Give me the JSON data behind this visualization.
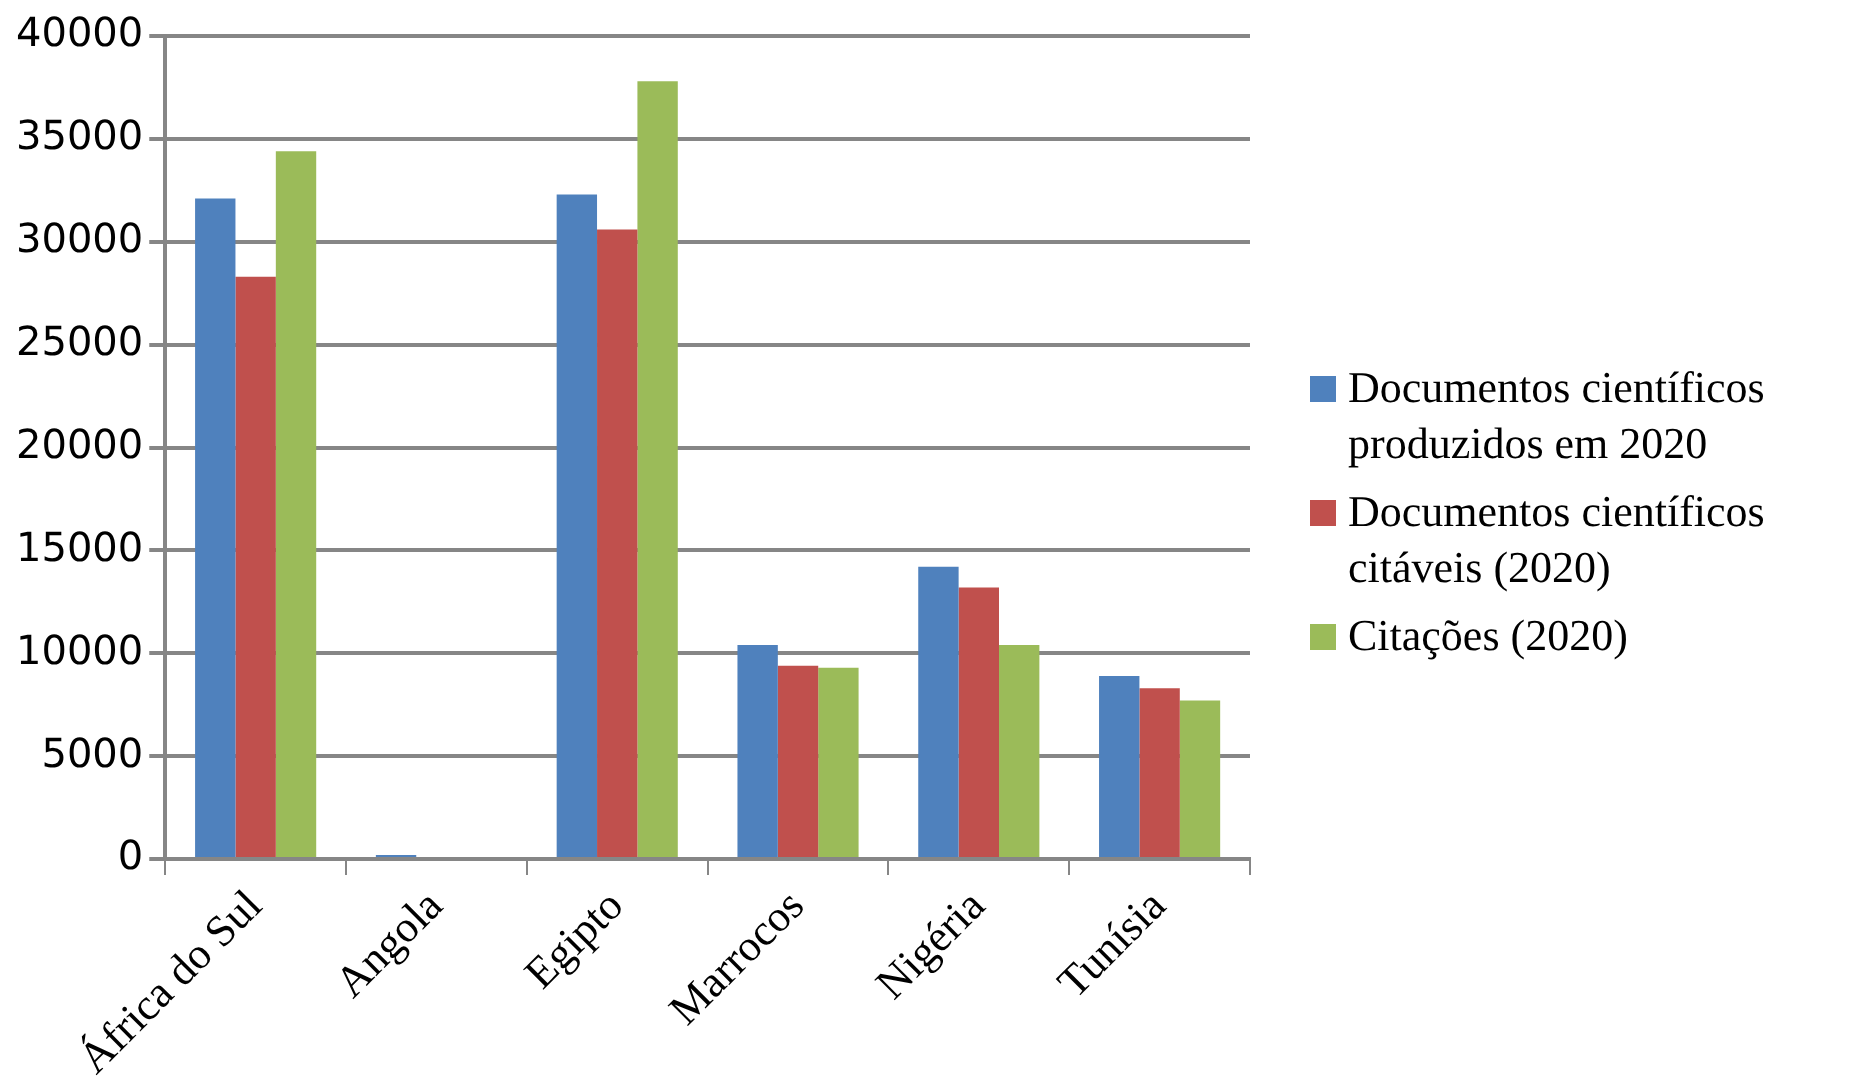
{
  "chart_data": {
    "type": "bar",
    "categories": [
      "África do Sul",
      "Angola",
      "Egipto",
      "Marrocos",
      "Nigéria",
      "Tunísia"
    ],
    "series": [
      {
        "name": "Documentos científicos produzidos em 2020",
        "color": "#4f81bd",
        "values": [
          32100,
          200,
          32300,
          10400,
          14200,
          8900
        ]
      },
      {
        "name": "Documentos científicos citáveis (2020)",
        "color": "#c0504d",
        "values": [
          28300,
          null,
          30600,
          9400,
          13200,
          8300
        ]
      },
      {
        "name": "Citações (2020)",
        "color": "#9bbb59",
        "values": [
          34400,
          null,
          37800,
          9300,
          10400,
          7700
        ]
      }
    ],
    "ylim": [
      0,
      40000
    ],
    "yticks": [
      0,
      5000,
      10000,
      15000,
      20000,
      25000,
      30000,
      35000,
      40000
    ],
    "grid": "y",
    "legend": "right"
  }
}
